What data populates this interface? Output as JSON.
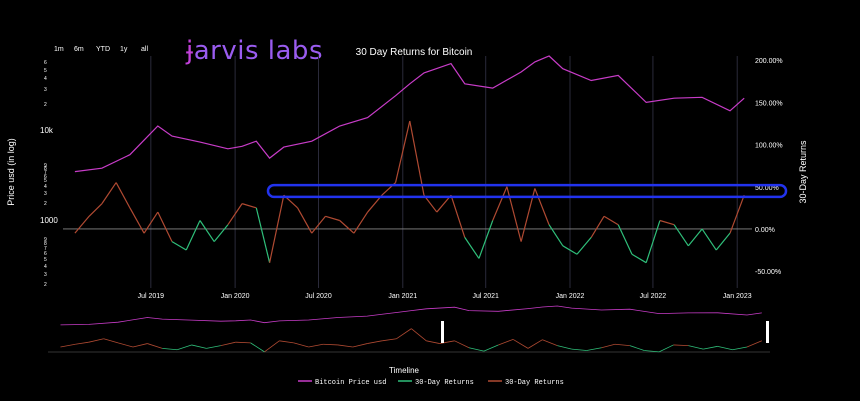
{
  "logo": {
    "brand": "Jarvis labs"
  },
  "range_buttons": [
    "1m",
    "6m",
    "YTD",
    "1y",
    "all"
  ],
  "chart_data": {
    "type": "line",
    "title": "30 Day Returns for Bitcoin",
    "xlabel": "",
    "ylabel_left": "Price usd (in log)",
    "ylabel_right": "30-Day Returns",
    "y_left_scale": "log",
    "y_left_ticks": [
      "2",
      "3",
      "4",
      "5",
      "6",
      "7",
      "8",
      "9",
      "1000",
      "2",
      "3",
      "4",
      "5",
      "6",
      "7",
      "8",
      "9",
      "10k",
      "2",
      "3",
      "4",
      "5",
      "6"
    ],
    "y_right_ticks": [
      "-50.00%",
      "0.00%",
      "50.00%",
      "100.00%",
      "150.00%",
      "200.00%"
    ],
    "y_right_range": [
      -70,
      205
    ],
    "x_ticks": [
      "Jul 2019",
      "Jan 2020",
      "Jul 2020",
      "Jan 2021",
      "Jul 2021",
      "Jan 2022",
      "Jul 2022",
      "Jan 2023"
    ],
    "grid": "vertical only",
    "timeline_label": "Timeline",
    "legend": [
      "Bitcoin Price usd",
      "30-Day Returns",
      "30-Day Returns"
    ],
    "legend_position": "bottom-center",
    "colors": {
      "price": "#c83cc8",
      "returns_positive": "#b04a32",
      "returns_negative": "#2fbf7a",
      "highlight": "#2233ee",
      "zero_line": "#888888"
    },
    "highlight_band": {
      "y_range": [
        38,
        52
      ]
    },
    "series": [
      {
        "name": "Bitcoin Price usd",
        "axis": "right",
        "x": [
          "2019-01",
          "2019-03",
          "2019-05",
          "2019-07",
          "2019-08",
          "2019-10",
          "2019-12",
          "2020-01",
          "2020-02",
          "2020-03",
          "2020-04",
          "2020-06",
          "2020-08",
          "2020-10",
          "2020-12",
          "2021-01",
          "2021-02",
          "2021-04",
          "2021-05",
          "2021-07",
          "2021-09",
          "2021-10",
          "2021-11",
          "2021-12",
          "2022-02",
          "2022-04",
          "2022-06",
          "2022-08",
          "2022-10",
          "2022-12",
          "2023-01"
        ],
        "values": [
          68,
          72,
          88,
          122,
          110,
          103,
          95,
          98,
          104,
          84,
          97,
          104,
          122,
          132,
          158,
          172,
          185,
          196,
          172,
          167,
          186,
          198,
          205,
          190,
          176,
          182,
          150,
          155,
          156,
          140,
          155
        ]
      },
      {
        "name": "30-Day Returns",
        "axis": "right",
        "x": [
          "2019-01",
          "2019-02",
          "2019-03",
          "2019-04",
          "2019-05",
          "2019-06",
          "2019-07",
          "2019-08",
          "2019-09",
          "2019-10",
          "2019-11",
          "2019-12",
          "2020-01",
          "2020-02",
          "2020-03",
          "2020-04",
          "2020-05",
          "2020-06",
          "2020-07",
          "2020-08",
          "2020-09",
          "2020-10",
          "2020-11",
          "2020-12",
          "2021-01",
          "2021-02",
          "2021-03",
          "2021-04",
          "2021-05",
          "2021-06",
          "2021-07",
          "2021-08",
          "2021-09",
          "2021-10",
          "2021-11",
          "2021-12",
          "2022-01",
          "2022-02",
          "2022-03",
          "2022-04",
          "2022-05",
          "2022-06",
          "2022-07",
          "2022-08",
          "2022-09",
          "2022-10",
          "2022-11",
          "2022-12",
          "2023-01"
        ],
        "values": [
          -5,
          15,
          30,
          55,
          25,
          -5,
          20,
          -15,
          -25,
          10,
          -15,
          5,
          30,
          25,
          -40,
          40,
          25,
          -5,
          15,
          10,
          -5,
          20,
          40,
          55,
          128,
          40,
          20,
          40,
          -10,
          -35,
          10,
          50,
          -15,
          48,
          5,
          -20,
          -30,
          -10,
          15,
          5,
          -30,
          -40,
          10,
          5,
          -20,
          0,
          -25,
          -5,
          40
        ]
      }
    ]
  }
}
